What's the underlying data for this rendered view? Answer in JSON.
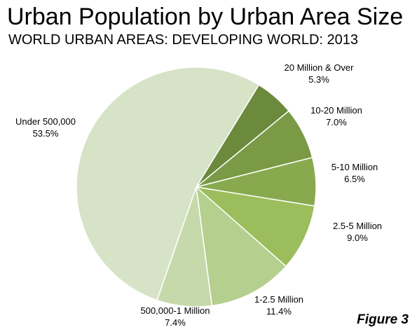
{
  "chart_data": {
    "type": "pie",
    "title": "Urban Population by Urban Area Size",
    "subtitle": "WORLD URBAN AREAS: DEVELOPING WORLD: 2013",
    "unit": "%",
    "slices": [
      {
        "label": "20 Million & Over",
        "value": 5.3,
        "display": "5.3%",
        "color": "#6b8a3c"
      },
      {
        "label": "10-20 Million",
        "value": 7.0,
        "display": "7.0%",
        "color": "#7a9a45"
      },
      {
        "label": "5-10 Million",
        "value": 6.5,
        "display": "6.5%",
        "color": "#89a94f"
      },
      {
        "label": "2.5-5 Million",
        "value": 9.0,
        "display": "9.0%",
        "color": "#9cbd5b"
      },
      {
        "label": "1-2.5 Million",
        "value": 11.4,
        "display": "11.4%",
        "color": "#b5cf8e"
      },
      {
        "label": "500,000-1 Million",
        "value": 7.4,
        "display": "7.4%",
        "color": "#c6d9aa"
      },
      {
        "label": "Under 500,000",
        "value": 53.5,
        "display": "53.5%",
        "color": "#d6e3c6"
      }
    ]
  },
  "figure_label": "Figure 3"
}
